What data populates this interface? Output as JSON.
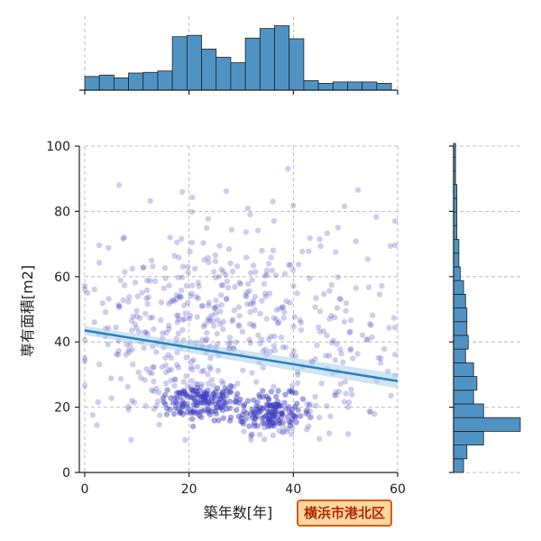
{
  "chart_data": {
    "type": "scatter",
    "xlabel": "築年数[年]",
    "ylabel": "専有面積[m2]",
    "xlim": [
      0,
      60
    ],
    "ylim": [
      0,
      100
    ],
    "x_ticks": [
      "0",
      "20",
      "40",
      "60"
    ],
    "y_ticks": [
      "0",
      "20",
      "40",
      "60",
      "80",
      "100"
    ],
    "grid": true,
    "point_color": "#3b3bbf",
    "line_color": "#2a7fc0",
    "regression_line": {
      "x": [
        0,
        60
      ],
      "y": [
        43.5,
        28
      ]
    },
    "top_histogram": {
      "bin_start": 0,
      "bin_width": 2.8,
      "heights": [
        0.2,
        0.22,
        0.18,
        0.25,
        0.26,
        0.28,
        0.78,
        0.8,
        0.6,
        0.48,
        0.4,
        0.76,
        0.9,
        0.94,
        0.75,
        0.14,
        0.1,
        0.12,
        0.12,
        0.12,
        0.1
      ]
    },
    "right_histogram": {
      "bin_start": 0,
      "bin_width": 4.2,
      "heights": [
        0.15,
        0.2,
        0.45,
        1.0,
        0.45,
        0.3,
        0.35,
        0.3,
        0.18,
        0.22,
        0.2,
        0.2,
        0.18,
        0.15,
        0.1,
        0.08,
        0.08,
        0.05,
        0.05,
        0.05,
        0.05,
        0.03,
        0.03,
        0.03
      ]
    }
  },
  "badge": {
    "label": "横浜市港北区"
  }
}
